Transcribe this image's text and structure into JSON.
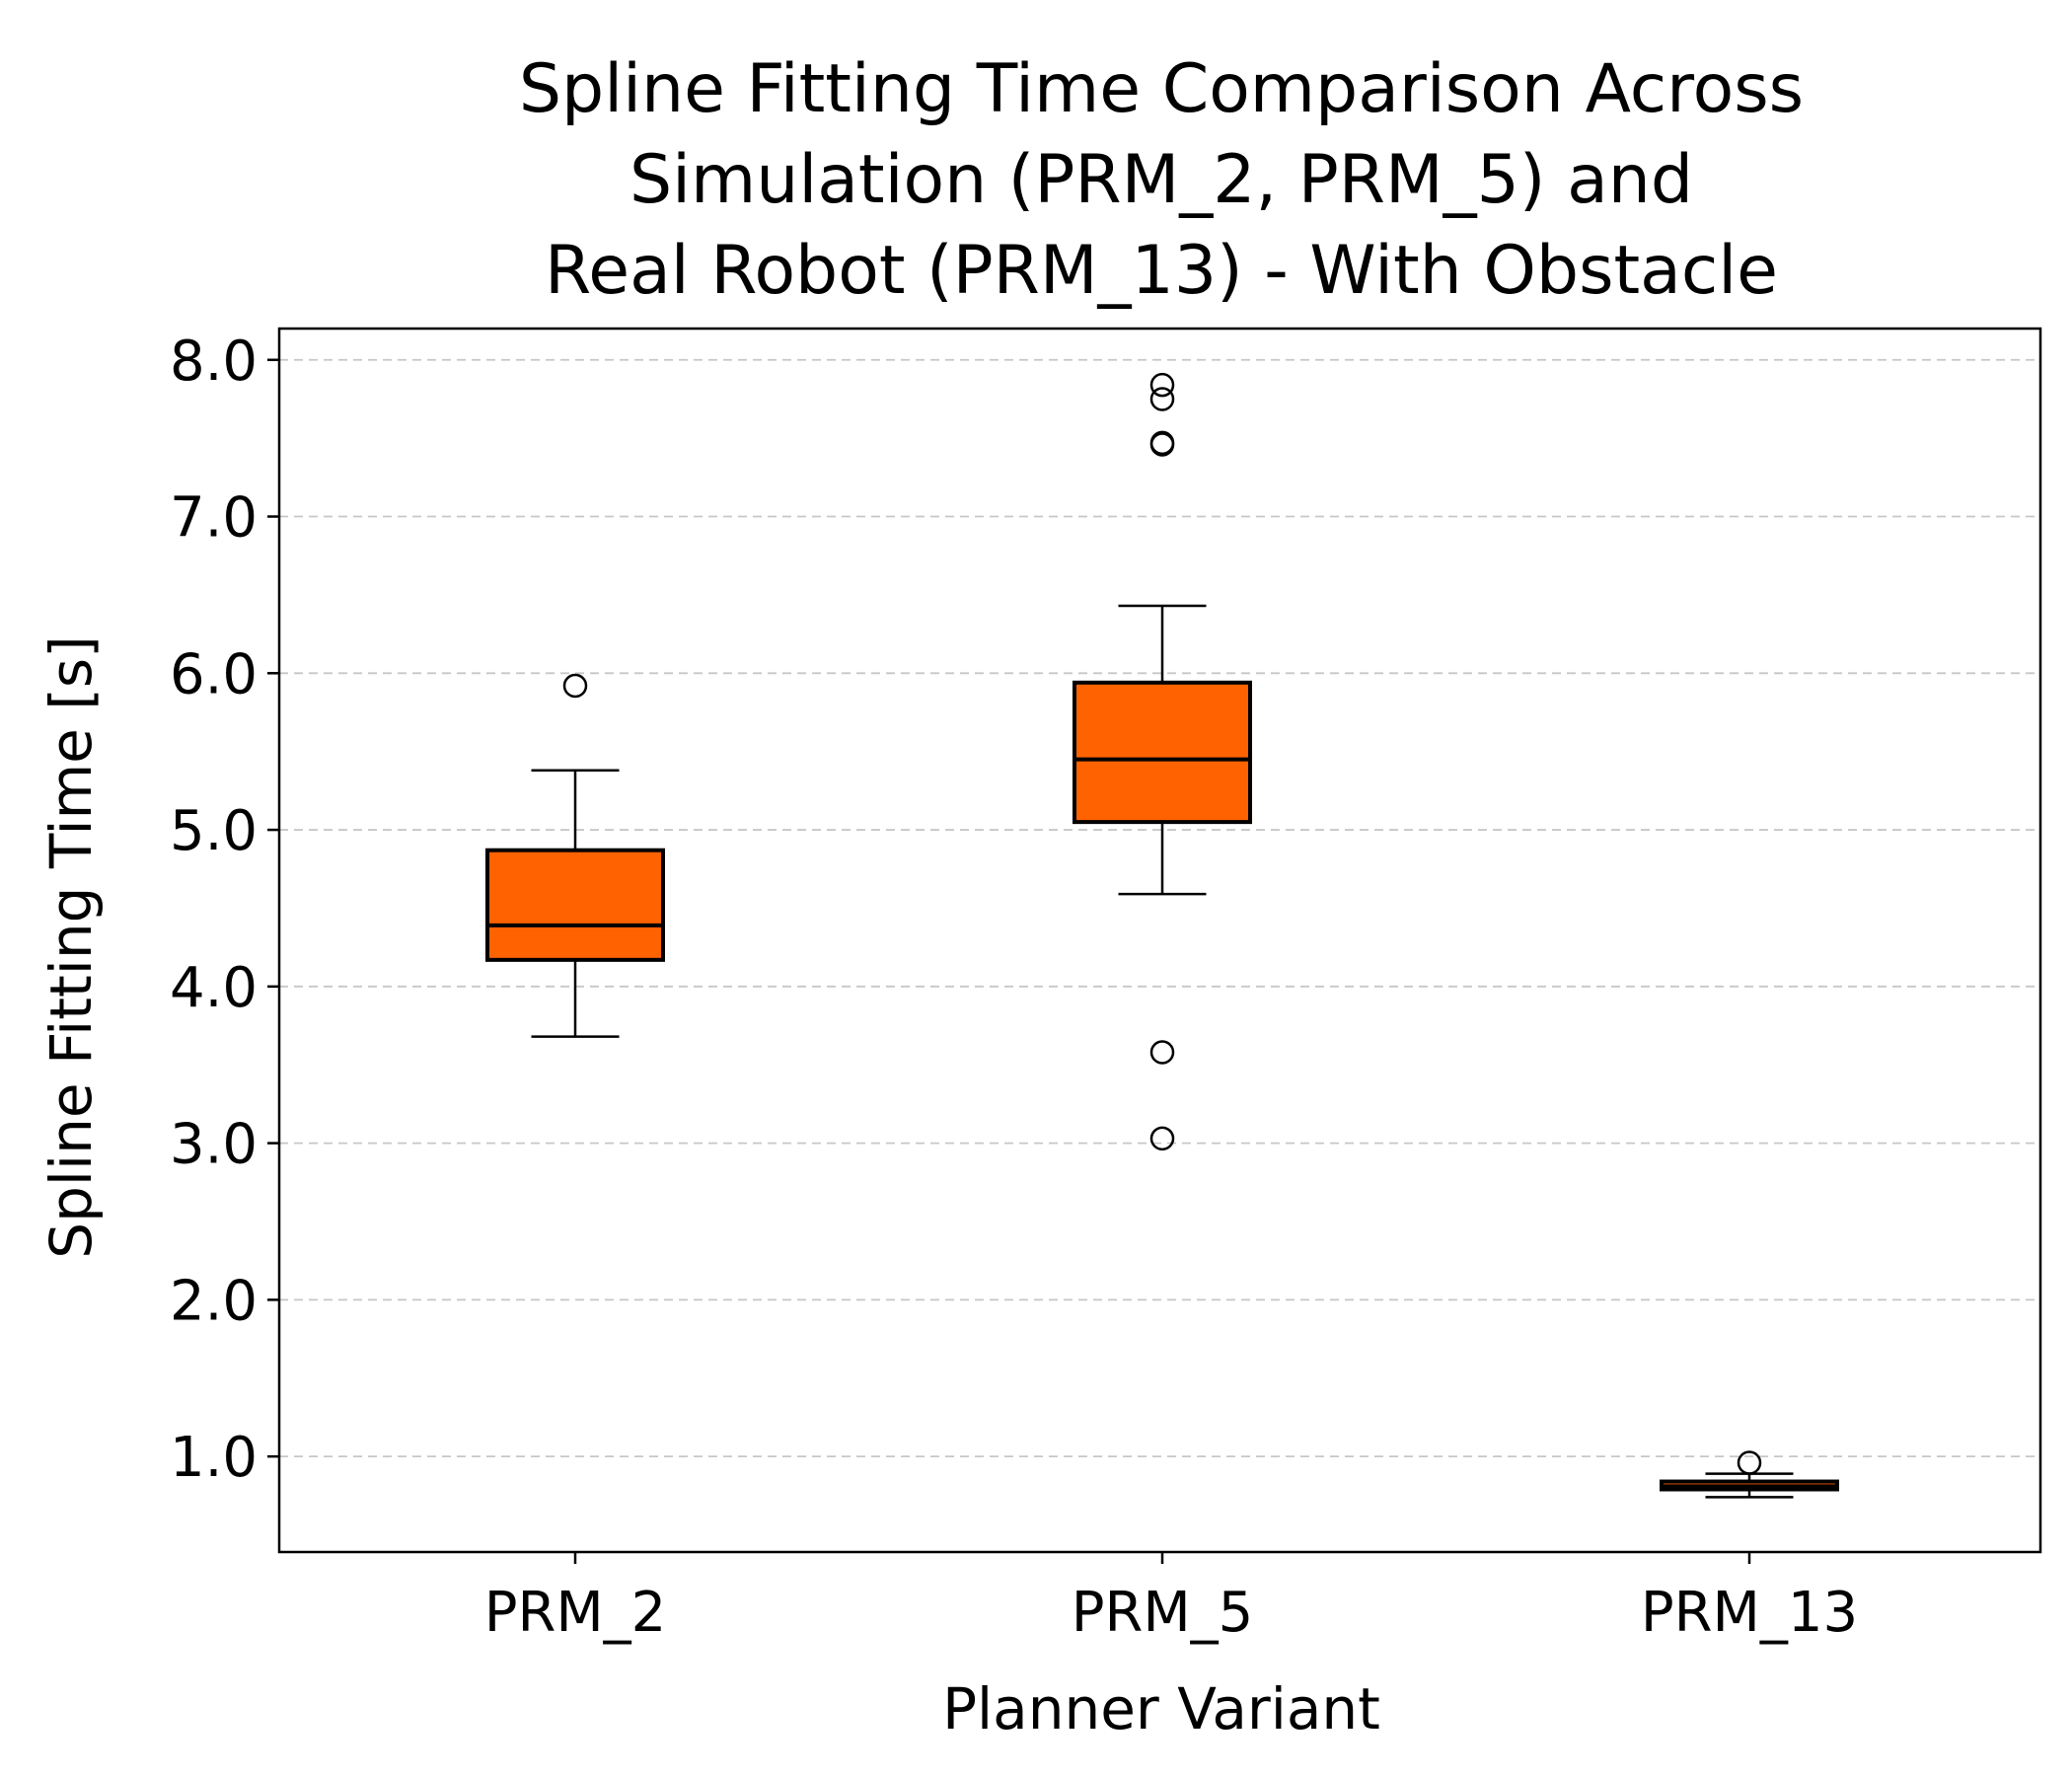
{
  "chart_data": {
    "type": "box",
    "title_lines": [
      "Spline Fitting Time Comparison Across",
      "Simulation (PRM_2, PRM_5) and",
      "Real Robot (PRM_13) - With Obstacle"
    ],
    "xlabel": "Planner Variant",
    "ylabel": "Spline Fitting Time [s]",
    "ylim": [
      0.39,
      8.2
    ],
    "yticks": [
      1.0,
      2.0,
      3.0,
      4.0,
      5.0,
      6.0,
      7.0,
      8.0
    ],
    "ytick_labels": [
      "1.0",
      "2.0",
      "3.0",
      "4.0",
      "5.0",
      "6.0",
      "7.0",
      "8.0"
    ],
    "grid": "y-dashed",
    "box_color": "#ff6200",
    "categories": [
      "PRM_2",
      "PRM_5",
      "PRM_13"
    ],
    "boxes": [
      {
        "category": "PRM_2",
        "whisker_low": 3.68,
        "q1": 4.17,
        "median": 4.39,
        "q3": 4.87,
        "whisker_high": 5.38,
        "outliers": [
          5.92
        ]
      },
      {
        "category": "PRM_5",
        "whisker_low": 4.59,
        "q1": 5.05,
        "median": 5.45,
        "q3": 5.94,
        "whisker_high": 6.43,
        "outliers": [
          7.84,
          7.75,
          7.47,
          7.46,
          3.58,
          3.03
        ]
      },
      {
        "category": "PRM_13",
        "whisker_low": 0.74,
        "q1": 0.79,
        "median": 0.81,
        "q3": 0.84,
        "whisker_high": 0.89,
        "outliers": [
          0.96
        ]
      }
    ]
  }
}
